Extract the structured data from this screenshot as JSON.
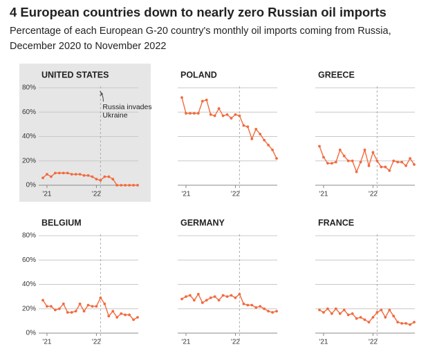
{
  "title": "4 European countries down to nearly zero Russian oil imports",
  "subtitle_lines": [
    "Percentage of each European G-20 country's monthly oil imports coming from Russia,",
    "December 2020 to November 2022"
  ],
  "chart_data": [
    {
      "type": "line",
      "title": "UNITED STATES",
      "highlight": true,
      "color": "#f26a3d",
      "categories": [
        null,
        "'21",
        null,
        null,
        null,
        null,
        null,
        null,
        null,
        null,
        null,
        null,
        null,
        "'22",
        null,
        null,
        null,
        null,
        null,
        null,
        null,
        null,
        null,
        null
      ],
      "values": [
        6,
        9,
        7,
        10,
        10,
        10,
        10,
        9,
        9,
        9,
        8,
        8,
        7,
        5,
        4,
        7,
        7,
        5,
        0,
        0,
        0,
        0,
        0,
        0
      ],
      "ylim": [
        0,
        80
      ],
      "yticks": [
        {
          "value": 0,
          "label": "0%"
        },
        {
          "value": 20,
          "label": "20%"
        },
        {
          "value": 40,
          "label": "40%"
        },
        {
          "value": 60,
          "label": "60%"
        },
        {
          "value": 80,
          "label": "80%"
        }
      ],
      "ytick_labels": true,
      "grid": true,
      "event_index": 14,
      "annotation_lines": [
        "Russia invades",
        "Ukraine"
      ]
    },
    {
      "type": "line",
      "title": "POLAND",
      "highlight": false,
      "color": "#f26a3d",
      "categories": [
        null,
        "'21",
        null,
        null,
        null,
        null,
        null,
        null,
        null,
        null,
        null,
        null,
        null,
        "'22",
        null,
        null,
        null,
        null,
        null,
        null,
        null,
        null,
        null,
        null
      ],
      "values": [
        72,
        59,
        59,
        59,
        59,
        69,
        70,
        58,
        57,
        63,
        57,
        58,
        55,
        58,
        57,
        49,
        48,
        38,
        46,
        42,
        37,
        33,
        29,
        22
      ],
      "ylim": [
        0,
        80
      ],
      "yticks": [
        0,
        20,
        40,
        60,
        80
      ],
      "ytick_labels": false,
      "grid": true,
      "event_index": 14
    },
    {
      "type": "line",
      "title": "GREECE",
      "highlight": false,
      "color": "#f26a3d",
      "categories": [
        null,
        "'21",
        null,
        null,
        null,
        null,
        null,
        null,
        null,
        null,
        null,
        null,
        null,
        "'22",
        null,
        null,
        null,
        null,
        null,
        null,
        null,
        null,
        null,
        null
      ],
      "values": [
        32,
        23,
        18,
        18,
        19,
        29,
        24,
        20,
        20,
        11,
        19,
        29,
        16,
        27,
        20,
        15,
        15,
        12,
        20,
        19,
        19,
        16,
        22,
        17
      ],
      "ylim": [
        0,
        80
      ],
      "yticks": [
        0,
        20,
        40,
        60,
        80
      ],
      "ytick_labels": false,
      "grid": true,
      "event_index": 14
    },
    {
      "type": "line",
      "title": "BELGIUM",
      "highlight": false,
      "color": "#f26a3d",
      "categories": [
        null,
        "'21",
        null,
        null,
        null,
        null,
        null,
        null,
        null,
        null,
        null,
        null,
        null,
        "'22",
        null,
        null,
        null,
        null,
        null,
        null,
        null,
        null,
        null,
        null
      ],
      "values": [
        27,
        22,
        22,
        19,
        20,
        24,
        17,
        17,
        18,
        24,
        18,
        23,
        22,
        22,
        29,
        24,
        14,
        18,
        13,
        16,
        15,
        15,
        11,
        13
      ],
      "ylim": [
        0,
        80
      ],
      "yticks": [
        {
          "value": 0,
          "label": "0%"
        },
        {
          "value": 20,
          "label": "20%"
        },
        {
          "value": 40,
          "label": "40%"
        },
        {
          "value": 60,
          "label": "60%"
        },
        {
          "value": 80,
          "label": "80%"
        }
      ],
      "ytick_labels": true,
      "grid": true,
      "event_index": 14
    },
    {
      "type": "line",
      "title": "GERMANY",
      "highlight": false,
      "color": "#f26a3d",
      "categories": [
        null,
        "'21",
        null,
        null,
        null,
        null,
        null,
        null,
        null,
        null,
        null,
        null,
        null,
        "'22",
        null,
        null,
        null,
        null,
        null,
        null,
        null,
        null,
        null,
        null
      ],
      "values": [
        28,
        30,
        31,
        27,
        32,
        25,
        27,
        29,
        30,
        27,
        31,
        30,
        31,
        29,
        32,
        24,
        23,
        23,
        21,
        22,
        20,
        18,
        17,
        18
      ],
      "ylim": [
        0,
        80
      ],
      "yticks": [
        0,
        20,
        40,
        60,
        80
      ],
      "ytick_labels": false,
      "grid": true,
      "event_index": 14
    },
    {
      "type": "line",
      "title": "FRANCE",
      "highlight": false,
      "color": "#f26a3d",
      "categories": [
        null,
        "'21",
        null,
        null,
        null,
        null,
        null,
        null,
        null,
        null,
        null,
        null,
        null,
        "'22",
        null,
        null,
        null,
        null,
        null,
        null,
        null,
        null,
        null,
        null
      ],
      "values": [
        19,
        17,
        20,
        16,
        20,
        16,
        19,
        15,
        16,
        12,
        13,
        11,
        9,
        13,
        17,
        19,
        13,
        19,
        14,
        9,
        8,
        8,
        7,
        9
      ],
      "ylim": [
        0,
        80
      ],
      "yticks": [
        0,
        20,
        40,
        60,
        80
      ],
      "ytick_labels": false,
      "grid": true,
      "event_index": 14
    }
  ]
}
